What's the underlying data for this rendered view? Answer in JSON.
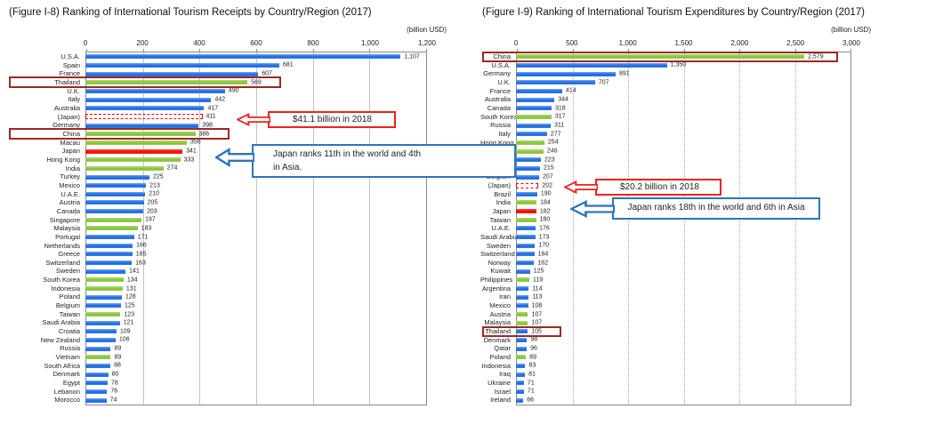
{
  "colors": {
    "bar_blue": "#1b66dd",
    "bar_green": "#85c13a",
    "bar_red": "#ee0400",
    "dashed_bar_red": "#ff0000",
    "highlight_box_dark_red": "#9c2a21",
    "red_callout_border": "#e8251d",
    "blue_callout_border": "#2e74bb",
    "gridline": "#c3c3c3",
    "plot_border": "#8a8a8a"
  },
  "chart_data": [
    {
      "type": "bar",
      "orientation": "horizontal",
      "title": "(Figure I-8) Ranking of International Tourism Receipts by Country/Region (2017)",
      "unit_label": "(billion USD)",
      "axis_max": 1200,
      "ticks": [
        "0",
        "200",
        "400",
        "600",
        "800",
        "1,000",
        "1,200"
      ],
      "gridline_style": "solid",
      "callouts": {
        "red": {
          "text": "$41.1 billion in 2018"
        },
        "blue": {
          "line1": "Japan ranks 11th in the world and 4th",
          "line2": "in Asia."
        }
      },
      "rows": [
        {
          "label": "U.S.A.",
          "value": 1107,
          "display": "1,107",
          "color": "blue"
        },
        {
          "label": "Spain",
          "value": 681,
          "display": "681",
          "color": "blue"
        },
        {
          "label": "France",
          "value": 607,
          "display": "607",
          "color": "blue"
        },
        {
          "label": "Thailand",
          "value": 569,
          "display": "569",
          "color": "green",
          "highlight": true
        },
        {
          "label": "U.K.",
          "value": 490,
          "display": "490",
          "color": "blue"
        },
        {
          "label": "Italy",
          "value": 442,
          "display": "442",
          "color": "blue"
        },
        {
          "label": "Australia",
          "value": 417,
          "display": "417",
          "color": "blue"
        },
        {
          "label": "(Japan)",
          "value": 411,
          "display": "411",
          "color": "dashed"
        },
        {
          "label": "Germany",
          "value": 398,
          "display": "398",
          "color": "blue"
        },
        {
          "label": "China",
          "value": 386,
          "display": "386",
          "color": "green",
          "highlight": true
        },
        {
          "label": "Macau",
          "value": 356,
          "display": "356",
          "color": "green"
        },
        {
          "label": "Japan",
          "value": 341,
          "display": "341",
          "color": "red"
        },
        {
          "label": "Hong Kong",
          "value": 333,
          "display": "333",
          "color": "green"
        },
        {
          "label": "India",
          "value": 274,
          "display": "274",
          "color": "green"
        },
        {
          "label": "Turkey",
          "value": 225,
          "display": "225",
          "color": "blue"
        },
        {
          "label": "Mexico",
          "value": 213,
          "display": "213",
          "color": "blue"
        },
        {
          "label": "U.A.E.",
          "value": 210,
          "display": "210",
          "color": "blue"
        },
        {
          "label": "Austria",
          "value": 205,
          "display": "205",
          "color": "blue"
        },
        {
          "label": "Canada",
          "value": 203,
          "display": "203",
          "color": "blue"
        },
        {
          "label": "Singapore",
          "value": 197,
          "display": "197",
          "color": "green"
        },
        {
          "label": "Malaysia",
          "value": 183,
          "display": "183",
          "color": "green"
        },
        {
          "label": "Portugal",
          "value": 171,
          "display": "171",
          "color": "blue"
        },
        {
          "label": "Netherlands",
          "value": 166,
          "display": "166",
          "color": "blue"
        },
        {
          "label": "Greece",
          "value": 165,
          "display": "165",
          "color": "blue"
        },
        {
          "label": "Switzerland",
          "value": 163,
          "display": "163",
          "color": "blue"
        },
        {
          "label": "Sweden",
          "value": 141,
          "display": "141",
          "color": "blue"
        },
        {
          "label": "South Korea",
          "value": 134,
          "display": "134",
          "color": "green"
        },
        {
          "label": "Indonesia",
          "value": 131,
          "display": "131",
          "color": "green"
        },
        {
          "label": "Poland",
          "value": 128,
          "display": "128",
          "color": "blue"
        },
        {
          "label": "Belgium",
          "value": 125,
          "display": "125",
          "color": "blue"
        },
        {
          "label": "Taiwan",
          "value": 123,
          "display": "123",
          "color": "green"
        },
        {
          "label": "Saudi Arabia",
          "value": 121,
          "display": "121",
          "color": "blue"
        },
        {
          "label": "Croatia",
          "value": 109,
          "display": "109",
          "color": "blue"
        },
        {
          "label": "New Zealand",
          "value": 106,
          "display": "106",
          "color": "blue"
        },
        {
          "label": "Russia",
          "value": 89,
          "display": "89",
          "color": "blue"
        },
        {
          "label": "Vietnam",
          "value": 89,
          "display": "89",
          "color": "green"
        },
        {
          "label": "South Africa",
          "value": 88,
          "display": "88",
          "color": "blue"
        },
        {
          "label": "Denmark",
          "value": 80,
          "display": "80",
          "color": "blue"
        },
        {
          "label": "Egypt",
          "value": 78,
          "display": "78",
          "color": "blue"
        },
        {
          "label": "Lebanon",
          "value": 76,
          "display": "76",
          "color": "blue"
        },
        {
          "label": "Morocco",
          "value": 74,
          "display": "74",
          "color": "blue"
        }
      ]
    },
    {
      "type": "bar",
      "orientation": "horizontal",
      "title": "(Figure I-9) Ranking of International Tourism Expenditures by Country/Region (2017)",
      "unit_label": "(billion USD)",
      "axis_max": 3000,
      "ticks": [
        "0",
        "500",
        "1,000",
        "1,500",
        "2,000",
        "2,500",
        "3,000"
      ],
      "gridline_style": "dotted",
      "callouts": {
        "red": {
          "text": "$20.2 billion in 2018"
        },
        "blue": {
          "line1": "Japan ranks 18th in the world and 6th in Asia"
        }
      },
      "rows": [
        {
          "label": "China",
          "value": 2579,
          "display": "2,579",
          "color": "green",
          "highlight": true
        },
        {
          "label": "U.S.A.",
          "value": 1350,
          "display": "1,350",
          "color": "blue"
        },
        {
          "label": "Germany",
          "value": 891,
          "display": "891",
          "color": "blue"
        },
        {
          "label": "U.K.",
          "value": 707,
          "display": "707",
          "color": "blue"
        },
        {
          "label": "France",
          "value": 414,
          "display": "414",
          "color": "blue"
        },
        {
          "label": "Australia",
          "value": 344,
          "display": "344",
          "color": "blue"
        },
        {
          "label": "Canada",
          "value": 318,
          "display": "318",
          "color": "blue"
        },
        {
          "label": "South Korea",
          "value": 317,
          "display": "317",
          "color": "green"
        },
        {
          "label": "Russia",
          "value": 311,
          "display": "311",
          "color": "blue"
        },
        {
          "label": "Italy",
          "value": 277,
          "display": "277",
          "color": "blue"
        },
        {
          "label": "Hong Kong",
          "value": 254,
          "display": "254",
          "color": "green"
        },
        {
          "label": "Singapore",
          "value": 246,
          "display": "246",
          "color": "green"
        },
        {
          "label": "Spain",
          "value": 223,
          "display": "223",
          "color": "blue"
        },
        {
          "label": "Netherlands",
          "value": 215,
          "display": "215",
          "color": "blue"
        },
        {
          "label": "Belgium",
          "value": 207,
          "display": "207",
          "color": "blue"
        },
        {
          "label": "(Japan)",
          "value": 202,
          "display": "202",
          "color": "dashed"
        },
        {
          "label": "Brazil",
          "value": 190,
          "display": "190",
          "color": "blue"
        },
        {
          "label": "India",
          "value": 184,
          "display": "184",
          "color": "green"
        },
        {
          "label": "Japan",
          "value": 182,
          "display": "182",
          "color": "red"
        },
        {
          "label": "Taiwan",
          "value": 180,
          "display": "180",
          "color": "green"
        },
        {
          "label": "U.A.E.",
          "value": 176,
          "display": "176",
          "color": "blue"
        },
        {
          "label": "Saudi Arabia",
          "value": 173,
          "display": "173",
          "color": "blue"
        },
        {
          "label": "Sweden",
          "value": 170,
          "display": "170",
          "color": "blue"
        },
        {
          "label": "Switzerland",
          "value": 164,
          "display": "164",
          "color": "blue"
        },
        {
          "label": "Norway",
          "value": 162,
          "display": "162",
          "color": "blue"
        },
        {
          "label": "Kuwait",
          "value": 125,
          "display": "125",
          "color": "blue"
        },
        {
          "label": "Philippines",
          "value": 119,
          "display": "119",
          "color": "green"
        },
        {
          "label": "Argentina",
          "value": 114,
          "display": "114",
          "color": "blue"
        },
        {
          "label": "Iran",
          "value": 113,
          "display": "113",
          "color": "blue"
        },
        {
          "label": "Mexico",
          "value": 108,
          "display": "108",
          "color": "blue"
        },
        {
          "label": "Austria",
          "value": 107,
          "display": "107",
          "color": "green"
        },
        {
          "label": "Malaysia",
          "value": 107,
          "display": "107",
          "color": "green"
        },
        {
          "label": "Thailand",
          "value": 105,
          "display": "105",
          "color": "blue",
          "highlight": true
        },
        {
          "label": "Denmark",
          "value": 98,
          "display": "98",
          "color": "blue"
        },
        {
          "label": "Qatar",
          "value": 96,
          "display": "96",
          "color": "blue"
        },
        {
          "label": "Poland",
          "value": 89,
          "display": "89",
          "color": "green"
        },
        {
          "label": "Indonesia",
          "value": 83,
          "display": "83",
          "color": "blue"
        },
        {
          "label": "Iraq",
          "value": 81,
          "display": "81",
          "color": "blue"
        },
        {
          "label": "Ukraine",
          "value": 71,
          "display": "71",
          "color": "blue"
        },
        {
          "label": "Israel",
          "value": 71,
          "display": "71",
          "color": "blue"
        },
        {
          "label": "Ireland",
          "value": 66,
          "display": "66",
          "color": "blue"
        }
      ]
    }
  ]
}
